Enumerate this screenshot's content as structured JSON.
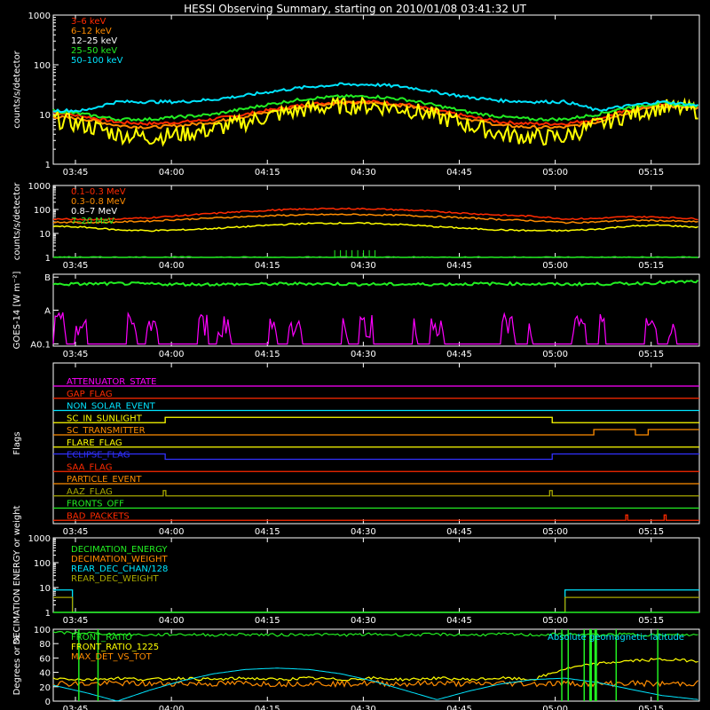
{
  "title": "HESSI Observing Summary, starting on 2010/01/08 03:41:32 UT",
  "x_ticks": [
    "03:45",
    "04:00",
    "04:15",
    "04:30",
    "04:45",
    "05:00",
    "05:15"
  ],
  "x_tick_minutes": [
    3.47,
    18.47,
    33.47,
    48.47,
    63.47,
    78.47,
    93.47
  ],
  "x_range_minutes": [
    0,
    101
  ],
  "colors": {
    "red": "#ff2a00",
    "orange": "#ff8c00",
    "yellow": "#ffff00",
    "green": "#22ee22",
    "cyan": "#00e5ff",
    "magenta": "#ff00ff",
    "blue": "#3030ff",
    "olive": "#a8a800",
    "white": "#ffffff"
  },
  "chart_data": [
    {
      "id": "low-energy",
      "type": "line",
      "ylabel": "counts/s/detector",
      "yscale": "log",
      "ylim": [
        1,
        1000
      ],
      "y_ticks": [
        "1",
        "10",
        "100",
        "1000"
      ],
      "legend": [
        {
          "name": "3–6 keV",
          "color": "red"
        },
        {
          "name": "6–12 keV",
          "color": "orange"
        },
        {
          "name": "12–25 keV",
          "color": "white"
        },
        {
          "name": "25–50 keV",
          "color": "green"
        },
        {
          "name": "50–100 keV",
          "color": "cyan"
        }
      ],
      "x": [
        0,
        5,
        10,
        15,
        20,
        25,
        30,
        35,
        40,
        45,
        50,
        55,
        60,
        65,
        70,
        75,
        80,
        85,
        90,
        95,
        101
      ],
      "series": [
        {
          "name": "3–6 keV",
          "color": "red",
          "values": [
            11,
            9,
            7,
            6.5,
            7,
            8,
            10,
            13,
            16,
            18,
            18,
            16,
            12,
            9,
            7,
            6.5,
            6.5,
            8,
            12,
            16,
            14
          ]
        },
        {
          "name": "6–12 keV",
          "color": "orange",
          "values": [
            9,
            8,
            6,
            5.5,
            6,
            7,
            9,
            12,
            15,
            17,
            17,
            15,
            11,
            8,
            6,
            5.5,
            5.5,
            7,
            11,
            15,
            13
          ]
        },
        {
          "name": "12–25 keV",
          "color": "yellow",
          "values": [
            8,
            6,
            4,
            3.5,
            4,
            5,
            7,
            10,
            13,
            15,
            15,
            13,
            9,
            6,
            4,
            3.5,
            3.5,
            6,
            10,
            14,
            12
          ]
        },
        {
          "name": "25–50 keV",
          "color": "green",
          "values": [
            12,
            10,
            8,
            8,
            9,
            10,
            13,
            17,
            21,
            23,
            23,
            20,
            15,
            11,
            9,
            8,
            8,
            10,
            14,
            17,
            15
          ]
        },
        {
          "name": "50–100 keV",
          "color": "cyan",
          "values": [
            12,
            12,
            18,
            18,
            18,
            20,
            24,
            30,
            36,
            40,
            40,
            36,
            28,
            22,
            19,
            18,
            18,
            12,
            15,
            18,
            15
          ]
        }
      ]
    },
    {
      "id": "high-energy",
      "type": "line",
      "ylabel": "counts/s/detector",
      "yscale": "log",
      "ylim": [
        1,
        1000
      ],
      "y_ticks": [
        "1",
        "10",
        "100",
        "1000"
      ],
      "legend": [
        {
          "name": "0.1–0.3 MeV",
          "color": "red"
        },
        {
          "name": "0.3–0.8 MeV",
          "color": "orange"
        },
        {
          "name": "0.8–7 MeV",
          "color": "white"
        },
        {
          "name": "7–20 MeV",
          "color": "green"
        }
      ],
      "x": [
        0,
        5,
        10,
        15,
        20,
        25,
        30,
        35,
        40,
        45,
        50,
        55,
        60,
        65,
        70,
        75,
        80,
        85,
        90,
        95,
        101
      ],
      "series": [
        {
          "name": "0.1–0.3 MeV",
          "color": "red",
          "values": [
            40,
            38,
            40,
            45,
            55,
            68,
            82,
            95,
            105,
            108,
            105,
            95,
            82,
            68,
            58,
            52,
            40,
            42,
            50,
            48,
            40
          ]
        },
        {
          "name": "0.3–0.8 MeV",
          "color": "orange",
          "values": [
            30,
            28,
            30,
            33,
            38,
            44,
            50,
            56,
            60,
            62,
            60,
            56,
            50,
            44,
            38,
            34,
            28,
            30,
            36,
            34,
            30
          ]
        },
        {
          "name": "0.8–7 MeV",
          "color": "yellow",
          "values": [
            20,
            18,
            14,
            13,
            14,
            16,
            19,
            23,
            26,
            27,
            26,
            23,
            19,
            16,
            14,
            13,
            13,
            15,
            20,
            22,
            18
          ]
        },
        {
          "name": "7–20 MeV",
          "color": "green",
          "values": [
            1,
            1,
            1,
            1,
            1,
            1,
            1,
            1,
            1,
            1,
            1,
            1,
            1,
            1,
            1,
            1,
            1,
            1,
            1,
            1,
            1
          ]
        }
      ]
    },
    {
      "id": "goes",
      "type": "line",
      "ylabel": "GOES-14 [W m⁻²]",
      "y_ticks": [
        "B",
        "A",
        "A0.1"
      ],
      "x": [
        0,
        10,
        20,
        30,
        40,
        50,
        60,
        70,
        80,
        90,
        101
      ],
      "series": [
        {
          "name": "GOES long",
          "color": "green",
          "values": [
            0.86,
            0.87,
            0.86,
            0.86,
            0.87,
            0.86,
            0.86,
            0.87,
            0.86,
            0.87,
            0.9
          ]
        },
        {
          "name": "GOES short",
          "color": "magenta",
          "values": [
            0.15,
            0.3,
            0.05,
            0.25,
            0.3,
            0.05,
            0.3,
            0.35,
            0.05,
            0.3,
            0.05
          ]
        }
      ]
    },
    {
      "id": "flags",
      "type": "line",
      "ylabel": "Flags",
      "flags": [
        {
          "name": "ATTENUATOR_STATE",
          "color": "magenta"
        },
        {
          "name": "GAP_FLAG",
          "color": "red"
        },
        {
          "name": "NON_SOLAR_EVENT",
          "color": "cyan"
        },
        {
          "name": "SC_IN_SUNLIGHT",
          "color": "yellow"
        },
        {
          "name": "SC_TRANSMITTER",
          "color": "orange"
        },
        {
          "name": "FLARE_FLAG",
          "color": "yellow"
        },
        {
          "name": "ECLIPSE_FLAG",
          "color": "blue"
        },
        {
          "name": "SAA_FLAG",
          "color": "red"
        },
        {
          "name": "PARTICLE_EVENT",
          "color": "orange"
        },
        {
          "name": "AAZ_FLAG",
          "color": "olive"
        },
        {
          "name": "FRONTS_OFF",
          "color": "green"
        },
        {
          "name": "BAD_PACKETS",
          "color": "red"
        }
      ],
      "steps": {
        "SC_IN_SUNLIGHT": [
          [
            0,
            0
          ],
          [
            17.5,
            1
          ],
          [
            78,
            0
          ]
        ],
        "SC_TRANSMITTER": [
          [
            0,
            0
          ],
          [
            84.5,
            1
          ],
          [
            91,
            0
          ],
          [
            93,
            1
          ]
        ],
        "ECLIPSE_FLAG": [
          [
            0,
            1
          ],
          [
            17.5,
            0
          ],
          [
            78,
            1
          ]
        ],
        "AAZ_FLAG": [
          [
            0,
            0
          ],
          [
            17.2,
            1
          ],
          [
            17.6,
            0
          ],
          [
            77.6,
            1
          ],
          [
            78,
            0
          ]
        ],
        "BAD_PACKETS": [
          [
            0,
            0
          ],
          [
            89.5,
            1
          ],
          [
            89.8,
            0
          ],
          [
            95.5,
            1
          ],
          [
            95.8,
            0
          ]
        ]
      }
    },
    {
      "id": "decimation",
      "type": "line",
      "ylabel": "DECIMATION ENERGY or weight",
      "yscale": "log",
      "ylim": [
        1,
        1000
      ],
      "y_ticks": [
        "1",
        "10",
        "100",
        "1000"
      ],
      "legend": [
        {
          "name": "DECIMATION_ENERGY",
          "color": "green"
        },
        {
          "name": "DECIMATION_WEIGHT",
          "color": "orange"
        },
        {
          "name": "REAR_DEC_CHAN/128",
          "color": "cyan"
        },
        {
          "name": "REAR_DEC_WEIGHT",
          "color": "olive"
        }
      ],
      "steps": {
        "REAR_DEC_CHAN/128": [
          [
            0,
            8
          ],
          [
            3,
            1
          ],
          [
            80,
            8
          ]
        ],
        "REAR_DEC_WEIGHT": [
          [
            0,
            4
          ],
          [
            3,
            1
          ],
          [
            80,
            4
          ]
        ]
      }
    },
    {
      "id": "ratios",
      "type": "line",
      "ylabel": "Degrees or %",
      "ylim": [
        0,
        100
      ],
      "y_ticks": [
        "0",
        "20",
        "40",
        "60",
        "80",
        "100"
      ],
      "legend": [
        {
          "name": "FRONT_RATIO",
          "color": "green"
        },
        {
          "name": "FRONT_RATIO_1225",
          "color": "yellow"
        },
        {
          "name": "MAX_DET_VS_TOT",
          "color": "orange"
        }
      ],
      "annotation": "Absolute geomagnetic latitude",
      "x": [
        0,
        5,
        10,
        15,
        20,
        25,
        30,
        35,
        40,
        45,
        50,
        55,
        60,
        65,
        70,
        75,
        80,
        85,
        90,
        95,
        101
      ],
      "series": [
        {
          "name": "FRONT_RATIO",
          "color": "green",
          "values": [
            95,
            95,
            93,
            92,
            93,
            92,
            93,
            92,
            93,
            92,
            93,
            92,
            93,
            92,
            93,
            92,
            93,
            92,
            93,
            92,
            92
          ]
        },
        {
          "name": "FRONT_RATIO_1225",
          "color": "yellow",
          "values": [
            32,
            30,
            32,
            30,
            32,
            30,
            32,
            30,
            32,
            30,
            32,
            30,
            32,
            30,
            32,
            30,
            45,
            52,
            56,
            58,
            56
          ]
        },
        {
          "name": "MAX_DET_VS_TOT",
          "color": "orange",
          "values": [
            25,
            24,
            25,
            24,
            25,
            24,
            25,
            24,
            25,
            24,
            25,
            24,
            25,
            24,
            25,
            24,
            25,
            24,
            25,
            24,
            25
          ]
        },
        {
          "name": "Absolute geomagnetic latitude",
          "color": "cyan",
          "values": [
            22,
            12,
            0,
            15,
            28,
            38,
            44,
            46,
            44,
            38,
            28,
            15,
            2,
            14,
            24,
            30,
            32,
            26,
            17,
            8,
            2
          ]
        }
      ]
    }
  ]
}
